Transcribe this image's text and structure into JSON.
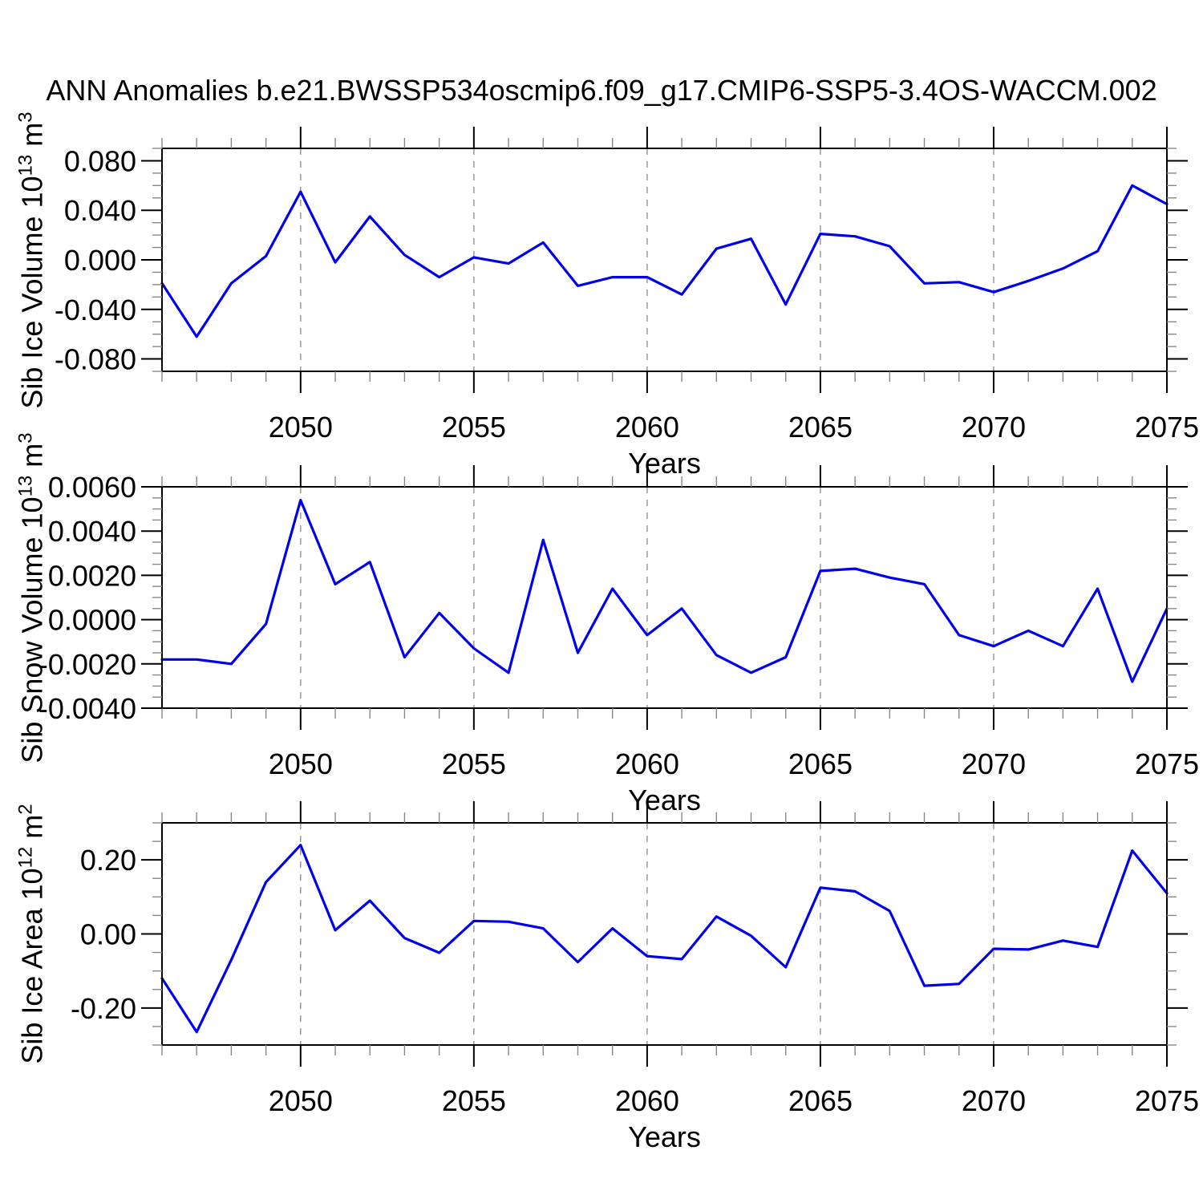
{
  "title": "ANN Anomalies b.e21.BWSSP534oscmip6.f09_g17.CMIP6-SSP5-3.4OS-WACCM.002",
  "colors": {
    "line": "#0000ee",
    "axis": "#000000",
    "major_tick": "#000000",
    "minor_tick": "#888888",
    "gridline": "#999999",
    "background": "#ffffff",
    "text": "#000000"
  },
  "x_axis": {
    "label": "Years",
    "range": [
      2046,
      2075
    ],
    "major_ticks": [
      2050,
      2055,
      2060,
      2065,
      2070,
      2075
    ],
    "major_tick_labels": [
      "2050",
      "2055",
      "2060",
      "2065",
      "2070",
      "2075"
    ],
    "minor_tick_interval": 1,
    "grid_years": [
      2050,
      2055,
      2060,
      2065,
      2070
    ],
    "grid_style": "dashed"
  },
  "chart_data": [
    {
      "type": "line",
      "ylabel": "Sib Ice Volume 10¹³ m³",
      "xlabel": "Years",
      "ylim": [
        -0.09,
        0.09
      ],
      "ytick_values": [
        0.08,
        0.04,
        0.0,
        -0.04,
        -0.08
      ],
      "ytick_labels": [
        "0.080",
        "0.040",
        "0.000",
        "-0.040",
        "-0.080"
      ],
      "minor_step": 0.01,
      "x": [
        2046,
        2047,
        2048,
        2049,
        2050,
        2051,
        2052,
        2053,
        2054,
        2055,
        2056,
        2057,
        2058,
        2059,
        2060,
        2061,
        2062,
        2063,
        2064,
        2065,
        2066,
        2067,
        2068,
        2069,
        2070,
        2071,
        2072,
        2073,
        2074,
        2075
      ],
      "values": [
        -0.019,
        -0.062,
        -0.019,
        0.003,
        0.055,
        -0.002,
        0.035,
        0.004,
        -0.014,
        0.002,
        -0.003,
        0.014,
        -0.021,
        -0.014,
        -0.014,
        -0.028,
        0.009,
        0.017,
        -0.036,
        0.021,
        0.019,
        0.011,
        -0.019,
        -0.018,
        -0.026,
        -0.017,
        -0.007,
        0.007,
        0.06,
        0.045
      ]
    },
    {
      "type": "line",
      "ylabel": "Sib Snow Volume 10¹³ m³",
      "xlabel": "Years",
      "ylim": [
        -0.004,
        0.006
      ],
      "ytick_values": [
        0.006,
        0.004,
        0.002,
        0.0,
        -0.002,
        -0.004
      ],
      "ytick_labels": [
        "0.0060",
        "0.0040",
        "0.0020",
        "0.0000",
        "-0.0020",
        "-0.0040"
      ],
      "minor_step": 0.0005,
      "x": [
        2046,
        2047,
        2048,
        2049,
        2050,
        2051,
        2052,
        2053,
        2054,
        2055,
        2056,
        2057,
        2058,
        2059,
        2060,
        2061,
        2062,
        2063,
        2064,
        2065,
        2066,
        2067,
        2068,
        2069,
        2070,
        2071,
        2072,
        2073,
        2074,
        2075
      ],
      "values": [
        -0.0018,
        -0.0018,
        -0.002,
        -0.0002,
        0.0054,
        0.0016,
        0.0026,
        -0.0017,
        0.0003,
        -0.0013,
        -0.0024,
        0.0036,
        -0.0015,
        0.0014,
        -0.0007,
        0.0005,
        -0.0016,
        -0.0024,
        -0.0017,
        0.0022,
        0.0023,
        0.0019,
        0.0016,
        -0.0007,
        -0.0012,
        -0.0005,
        -0.0012,
        0.0014,
        -0.0028,
        0.0005
      ]
    },
    {
      "type": "line",
      "ylabel": "Sib Ice Area 10¹² m²",
      "xlabel": "Years",
      "ylim": [
        -0.3,
        0.3
      ],
      "ytick_values": [
        0.2,
        0.0,
        -0.2
      ],
      "ytick_labels": [
        "0.20",
        "0.00",
        "-0.20"
      ],
      "minor_step": 0.05,
      "x": [
        2046,
        2047,
        2048,
        2049,
        2050,
        2051,
        2052,
        2053,
        2054,
        2055,
        2056,
        2057,
        2058,
        2059,
        2060,
        2061,
        2062,
        2063,
        2064,
        2065,
        2066,
        2067,
        2068,
        2069,
        2070,
        2071,
        2072,
        2073,
        2074,
        2075
      ],
      "values": [
        -0.12,
        -0.265,
        -0.07,
        0.14,
        0.24,
        0.01,
        0.09,
        -0.011,
        -0.051,
        0.035,
        0.033,
        0.015,
        -0.076,
        0.015,
        -0.06,
        -0.068,
        0.047,
        -0.005,
        -0.09,
        0.125,
        0.115,
        0.062,
        -0.14,
        -0.135,
        -0.04,
        -0.042,
        -0.018,
        -0.035,
        0.225,
        0.11
      ]
    }
  ]
}
